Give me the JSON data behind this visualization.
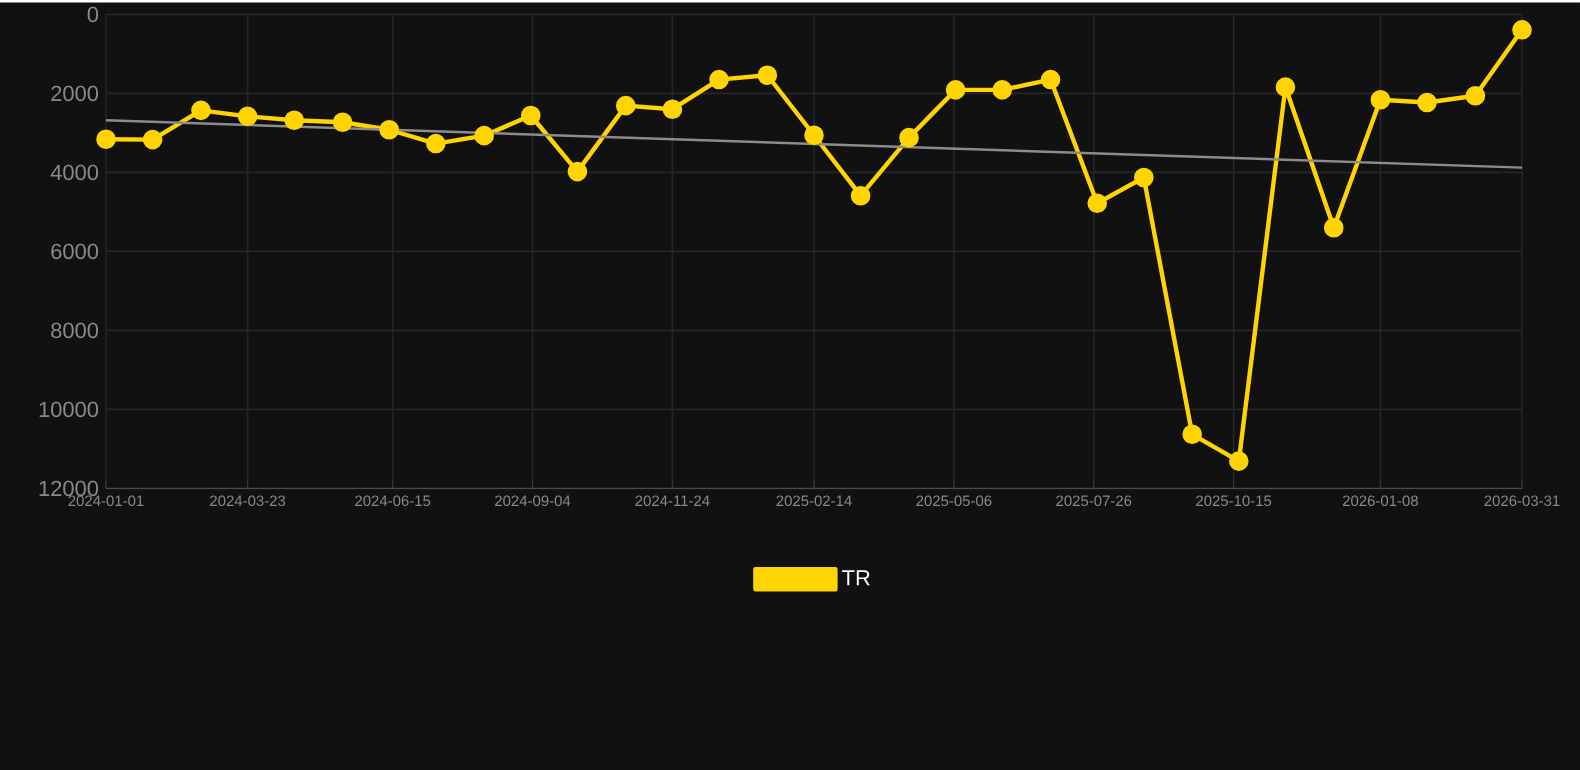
{
  "chart_data": {
    "type": "line",
    "marker": "circle",
    "legend": "bottom",
    "grid": true,
    "x": [
      "2024-01-01",
      "2024-01-28",
      "2024-02-25",
      "2024-03-23",
      "2024-04-19",
      "2024-05-17",
      "2024-06-13",
      "2024-07-10",
      "2024-08-07",
      "2024-09-03",
      "2024-09-30",
      "2024-10-28",
      "2024-11-24",
      "2024-12-21",
      "2025-01-18",
      "2025-02-14",
      "2025-03-13",
      "2025-04-10",
      "2025-05-07",
      "2025-06-03",
      "2025-07-01",
      "2025-07-28",
      "2025-08-24",
      "2025-09-21",
      "2025-10-18",
      "2025-11-14",
      "2025-12-12",
      "2026-01-08",
      "2026-02-04",
      "2026-03-04",
      "2026-03-31"
    ],
    "series": [
      {
        "name": "TR",
        "color": "#ffd400",
        "values": [
          3160,
          3170,
          2430,
          2580,
          2680,
          2730,
          2920,
          3270,
          3070,
          2560,
          3980,
          2310,
          2400,
          1650,
          1540,
          3060,
          4590,
          3120,
          1910,
          1910,
          1650,
          4780,
          4130,
          10630,
          11310,
          1840,
          5400,
          2160,
          2230,
          2060,
          390
        ]
      },
      {
        "type": "line",
        "marker": "none",
        "color": "#8c8c8c",
        "x": [
          "2024-01-01",
          "2026-03-31"
        ],
        "values": [
          2680,
          3880
        ]
      }
    ],
    "xlim": [
      "2024-01-01",
      "2026-03-31"
    ],
    "xticks": [
      "2024-01-01",
      "2024-03-23",
      "2024-06-15",
      "2024-09-04",
      "2024-11-24",
      "2025-02-14",
      "2025-05-06",
      "2025-07-26",
      "2025-10-15",
      "2026-01-08",
      "2026-03-31"
    ],
    "ylim": [
      12000,
      0
    ],
    "yticks": [
      0,
      2000,
      4000,
      6000,
      8000,
      10000,
      12000
    ]
  }
}
